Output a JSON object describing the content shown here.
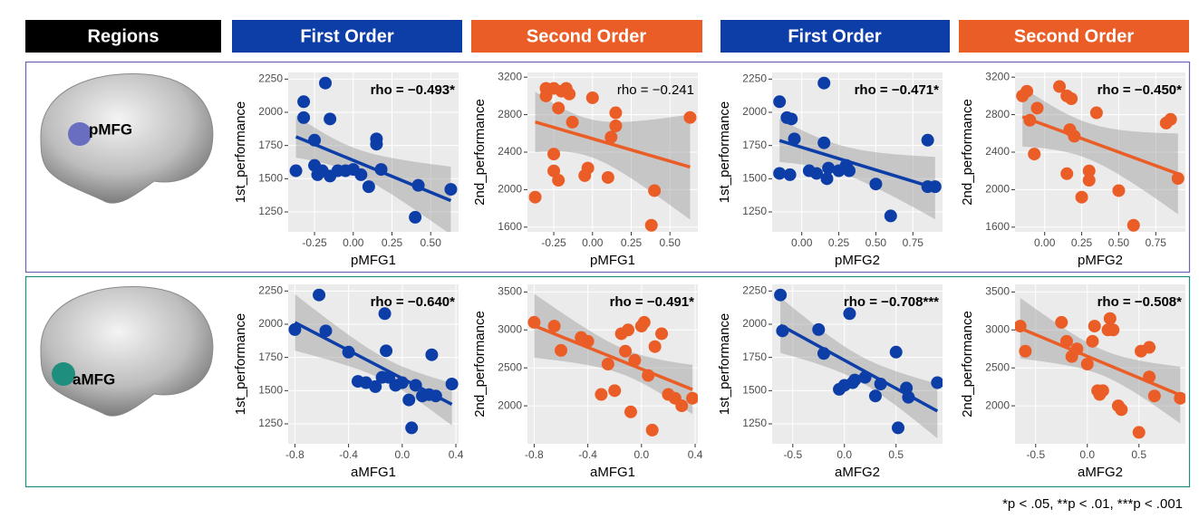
{
  "headers": [
    "Regions",
    "First Order",
    "Second Order",
    "First Order",
    "Second Order"
  ],
  "regions": [
    "pMFG",
    "aMFG"
  ],
  "footnote": "*p < .05, **p < .01, ***p < .001",
  "chart_data": [
    {
      "type": "scatter",
      "x_label": "pMFG1",
      "y_label": "1st_performance",
      "annotation": "rho = −0.493*",
      "color": "#0d3ea8",
      "grid": true,
      "x": [
        -0.37,
        -0.32,
        -0.32,
        -0.25,
        -0.25,
        -0.23,
        -0.2,
        -0.18,
        -0.15,
        -0.15,
        -0.1,
        -0.05,
        0,
        0.05,
        0.1,
        0.15,
        0.15,
        0.18,
        0.4,
        0.42,
        0.63
      ],
      "values": [
        1560,
        2080,
        1960,
        1790,
        1600,
        1530,
        1560,
        2220,
        1950,
        1520,
        1560,
        1560,
        1570,
        1530,
        1440,
        1800,
        1760,
        1570,
        1210,
        1450,
        1420
      ],
      "xlim": [
        -0.42,
        0.68
      ],
      "ylim": [
        1100,
        2300
      ],
      "xticks": [
        -0.25,
        {
          "value": 0,
          "label": "0.00"
        },
        0.25,
        {
          "value": 0.5,
          "label": "0.50"
        }
      ],
      "yticks": [
        1250,
        1500,
        1750,
        2000,
        2250
      ]
    },
    {
      "type": "scatter",
      "x_label": "pMFG1",
      "y_label": "2nd_performance",
      "annotation": "rho = −0.241",
      "color": "#eb5d26",
      "grid": true,
      "x": [
        -0.37,
        -0.3,
        -0.3,
        -0.25,
        -0.25,
        -0.22,
        -0.25,
        -0.22,
        -0.2,
        -0.17,
        -0.15,
        -0.13,
        -0.05,
        -0.03,
        0,
        0.1,
        0.12,
        0.15,
        0.15,
        0.4,
        0.38,
        0.63
      ],
      "values": [
        1920,
        3080,
        3000,
        3080,
        2380,
        2870,
        2200,
        2100,
        3050,
        3080,
        3020,
        2720,
        2150,
        2230,
        2980,
        2130,
        2560,
        2820,
        2680,
        1990,
        1620,
        2770
      ],
      "xlim": [
        -0.42,
        0.68
      ],
      "ylim": [
        1550,
        3250
      ],
      "xticks": [
        -0.25,
        {
          "value": 0,
          "label": "0.00"
        },
        0.25,
        {
          "value": 0.5,
          "label": "0.50"
        }
      ],
      "yticks": [
        1600,
        2000,
        2400,
        2800,
        3200
      ]
    },
    {
      "type": "scatter",
      "x_label": "pMFG2",
      "y_label": "1st_performance",
      "annotation": "rho = −0.471*",
      "color": "#0d3ea8",
      "grid": true,
      "x": [
        -0.15,
        -0.15,
        -0.1,
        -0.07,
        -0.05,
        -0.08,
        0.05,
        0.1,
        0.15,
        0.15,
        0.17,
        0.18,
        0.25,
        0.3,
        0.32,
        0.5,
        0.6,
        0.85,
        0.85,
        0.9
      ],
      "values": [
        2080,
        1540,
        1960,
        1950,
        1800,
        1530,
        1560,
        1540,
        1770,
        2220,
        1500,
        1580,
        1560,
        1600,
        1560,
        1460,
        1220,
        1790,
        1440,
        1440
      ],
      "xlim": [
        -0.2,
        0.95
      ],
      "ylim": [
        1100,
        2300
      ],
      "xticks": [
        {
          "value": 0,
          "label": "0.00"
        },
        0.25,
        {
          "value": 0.5,
          "label": "0.50"
        },
        0.75
      ],
      "yticks": [
        1250,
        1500,
        1750,
        2000,
        2250
      ]
    },
    {
      "type": "scatter",
      "x_label": "pMFG2",
      "y_label": "2nd_performance",
      "annotation": "rho = −0.450*",
      "color": "#eb5d26",
      "grid": true,
      "x": [
        -0.15,
        -0.12,
        -0.1,
        -0.05,
        -0.07,
        0.1,
        0.15,
        0.18,
        0.15,
        0.17,
        0.2,
        0.25,
        0.3,
        0.3,
        0.35,
        0.5,
        0.6,
        0.82,
        0.85,
        0.9
      ],
      "values": [
        3000,
        3050,
        2740,
        2870,
        2380,
        3100,
        3000,
        2970,
        2170,
        2640,
        2570,
        1920,
        2200,
        2100,
        2820,
        1990,
        1620,
        2710,
        2750,
        2120
      ],
      "xlim": [
        -0.2,
        0.95
      ],
      "ylim": [
        1550,
        3250
      ],
      "xticks": [
        {
          "value": 0,
          "label": "0.00"
        },
        0.25,
        {
          "value": 0.5,
          "label": "0.50"
        },
        0.75
      ],
      "yticks": [
        1600,
        2000,
        2400,
        2800,
        3200
      ]
    },
    {
      "type": "scatter",
      "x_label": "aMFG1",
      "y_label": "1st_performance",
      "annotation": "rho = −0.640*",
      "color": "#0d3ea8",
      "grid": true,
      "x": [
        -0.8,
        -0.62,
        -0.57,
        -0.4,
        -0.33,
        -0.27,
        -0.2,
        -0.13,
        -0.12,
        -0.15,
        -0.1,
        -0.05,
        0,
        0.05,
        0.07,
        0.1,
        0.15,
        0.2,
        0.22,
        0.25,
        0.37
      ],
      "values": [
        1960,
        2220,
        1950,
        1790,
        1570,
        1560,
        1530,
        2080,
        1800,
        1600,
        1600,
        1540,
        1560,
        1430,
        1220,
        1540,
        1460,
        1470,
        1770,
        1460,
        1550
      ],
      "xlim": [
        -0.85,
        0.42
      ],
      "ylim": [
        1100,
        2300
      ],
      "xticks": [
        -0.8,
        -0.4,
        {
          "value": 0,
          "label": "0.0"
        },
        0.4
      ],
      "yticks": [
        1250,
        1500,
        1750,
        2000,
        2250
      ]
    },
    {
      "type": "scatter",
      "x_label": "aMFG1",
      "y_label": "2nd_performance",
      "annotation": "rho = −0.491*",
      "color": "#eb5d26",
      "grid": true,
      "x": [
        -0.8,
        -0.65,
        -0.6,
        -0.45,
        -0.4,
        -0.3,
        -0.25,
        -0.2,
        -0.15,
        -0.1,
        -0.12,
        -0.08,
        -0.05,
        0,
        0.02,
        0.05,
        0.08,
        0.1,
        0.15,
        0.2,
        0.25,
        0.3,
        0.38
      ],
      "values": [
        3100,
        3050,
        2730,
        2900,
        2850,
        2150,
        2550,
        2200,
        2950,
        3000,
        2720,
        1920,
        2600,
        3050,
        3100,
        2400,
        1680,
        2780,
        2950,
        2150,
        2100,
        2000,
        2100
      ],
      "xlim": [
        -0.85,
        0.42
      ],
      "ylim": [
        1500,
        3600
      ],
      "xticks": [
        -0.8,
        -0.4,
        {
          "value": 0,
          "label": "0.0"
        },
        0.4
      ],
      "yticks": [
        2000,
        2500,
        3000,
        3500
      ]
    },
    {
      "type": "scatter",
      "x_label": "aMFG2",
      "y_label": "1st_performance",
      "annotation": "rho = −0.708***",
      "color": "#0d3ea8",
      "grid": true,
      "x": [
        -0.62,
        -0.6,
        -0.25,
        -0.2,
        -0.05,
        0,
        0.05,
        0.08,
        0.1,
        0.2,
        0.3,
        0.35,
        0.5,
        0.52,
        0.6,
        0.62,
        0.9
      ],
      "values": [
        2220,
        1950,
        1960,
        1780,
        1510,
        1540,
        2080,
        1560,
        1580,
        1600,
        1460,
        1550,
        1790,
        1220,
        1520,
        1450,
        1560
      ],
      "xlim": [
        -0.7,
        0.95
      ],
      "ylim": [
        1100,
        2300
      ],
      "xticks": [
        -0.5,
        {
          "value": 0,
          "label": "0.0"
        },
        0.5
      ],
      "yticks": [
        1250,
        1500,
        1750,
        2000,
        2250
      ]
    },
    {
      "type": "scatter",
      "x_label": "aMFG2",
      "y_label": "2nd_performance",
      "annotation": "rho = −0.508*",
      "color": "#eb5d26",
      "grid": true,
      "x": [
        -0.65,
        -0.6,
        -0.25,
        -0.2,
        -0.15,
        -0.1,
        0,
        0.05,
        0.07,
        0.1,
        0.12,
        0.15,
        0.2,
        0.22,
        0.25,
        0.3,
        0.33,
        0.5,
        0.52,
        0.6,
        0.6,
        0.65,
        0.9
      ],
      "values": [
        3050,
        2720,
        3100,
        2850,
        2650,
        2750,
        2550,
        2850,
        3050,
        2200,
        2150,
        2200,
        3000,
        3150,
        3000,
        2000,
        1950,
        1650,
        2720,
        2770,
        2380,
        2130,
        2100
      ],
      "xlim": [
        -0.7,
        0.95
      ],
      "ylim": [
        1500,
        3600
      ],
      "xticks": [
        -0.5,
        {
          "value": 0,
          "label": "0.0"
        },
        0.5
      ],
      "yticks": [
        2000,
        2500,
        3000,
        3500
      ]
    }
  ]
}
